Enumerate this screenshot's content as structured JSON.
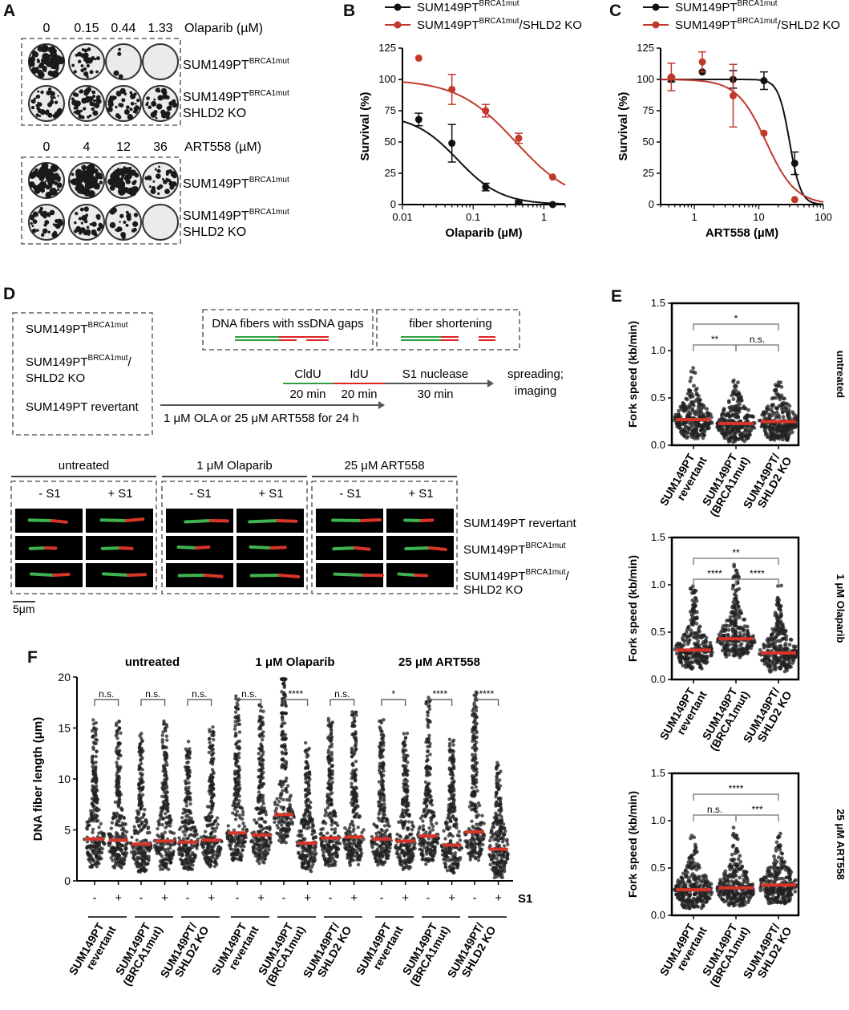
{
  "panels": {
    "A": {
      "label": "A",
      "olaparib": {
        "header": "Olaparib (µM)",
        "doses": [
          "0",
          "0.15",
          "0.44",
          "1.33"
        ]
      },
      "art558": {
        "header": "ART558 (µM)",
        "doses": [
          "0",
          "4",
          "12",
          "36"
        ]
      },
      "row1": {
        "base": "SUM149PT",
        "sup": "BRCA1mut"
      },
      "row2_line1": {
        "base": "SUM149PT",
        "sup": "BRCA1mut"
      },
      "row2_line2": "SHLD2 KO",
      "plate_densities": {
        "olaparib_row1": [
          0.85,
          0.35,
          0.05,
          0.0
        ],
        "olaparib_row2": [
          0.55,
          0.55,
          0.5,
          0.45
        ],
        "art558_row1": [
          0.9,
          0.85,
          0.8,
          0.5
        ],
        "art558_row2": [
          0.55,
          0.45,
          0.3,
          0.0
        ]
      }
    },
    "B": {
      "label": "B"
    },
    "C": {
      "label": "C"
    },
    "D": {
      "label": "D",
      "cell_lines": [
        {
          "base": "SUM149PT",
          "sup": "BRCA1mut",
          "suffix": ""
        },
        {
          "base": "SUM149PT",
          "sup": "BRCA1mut",
          "suffix": "/"
        },
        {
          "base": "SHLD2 KO",
          "sup": "",
          "suffix": ""
        },
        {
          "base": "SUM149PT revertant",
          "sup": "",
          "suffix": ""
        }
      ],
      "box1": "DNA fibers with ssDNA gaps",
      "box2": "fiber shortening",
      "steps": [
        {
          "name": "CldU",
          "time": "20 min"
        },
        {
          "name": "IdU",
          "time": "20 min"
        },
        {
          "name": "S1 nuclease",
          "time": "30 min"
        }
      ],
      "final_step": [
        "spreading;",
        "imaging"
      ],
      "treatment": "1 μM OLA or 25 μM ART558 for 24 h",
      "groups": [
        "untreated",
        "1 μM Olaparib",
        "25 μM ART558"
      ],
      "s1_labels": [
        "- S1",
        "+ S1"
      ],
      "row_labels": [
        {
          "base": "SUM149PT revertant",
          "sup": ""
        },
        {
          "base": "SUM149PT",
          "sup": "BRCA1mut"
        },
        {
          "base": "SUM149PT",
          "sup": "BRCA1mut",
          "suffix": "/",
          "line2": "SHLD2 KO"
        }
      ],
      "scale_bar": "5μm"
    },
    "E": {
      "label": "E",
      "conditions": [
        "untreated",
        "1 μM Olaparib",
        "25 μM ART558"
      ]
    },
    "F": {
      "label": "F",
      "s1": "S1",
      "minus": "-",
      "plus": "+"
    }
  },
  "chart_data": [
    {
      "id": "B",
      "type": "scatter",
      "xlabel": "Olaparib (µM)",
      "ylabel": "Survival (%)",
      "xscale": "log",
      "xlim": [
        0.01,
        2
      ],
      "ylim": [
        0,
        125
      ],
      "xticks": [
        "0.01",
        "0.1",
        "1"
      ],
      "yticks": [
        0,
        25,
        50,
        75,
        100,
        125
      ],
      "legend_position": "top",
      "series": [
        {
          "name": "SUM149PT",
          "name_sup": "BRCA1mut",
          "color": "#111111",
          "x": [
            0.017,
            0.05,
            0.15,
            0.44,
            1.33
          ],
          "y": [
            68,
            49,
            14,
            2,
            0
          ],
          "err": [
            5,
            15,
            3,
            1,
            0
          ],
          "fit": {
            "top": 72,
            "ic50": 0.06,
            "hill": 1.4
          }
        },
        {
          "name": "SUM149PT",
          "name_sup": "BRCA1mut",
          "name_suffix": "/SHLD2 KO",
          "color": "#c0392b",
          "x": [
            0.017,
            0.05,
            0.15,
            0.44,
            1.33
          ],
          "y": [
            117,
            92,
            75,
            53,
            22
          ],
          "err": [
            0,
            12,
            5,
            4,
            0
          ],
          "fit": {
            "top": 100,
            "ic50": 0.4,
            "hill": 1.05
          }
        }
      ]
    },
    {
      "id": "C",
      "type": "scatter",
      "xlabel": "ART558 (µM)",
      "ylabel": "Survival (%)",
      "xscale": "log",
      "xlim": [
        0.3,
        100
      ],
      "ylim": [
        0,
        125
      ],
      "xticks": [
        "1",
        "10",
        "100"
      ],
      "yticks": [
        0,
        25,
        50,
        75,
        100,
        125
      ],
      "legend_position": "top",
      "series": [
        {
          "name": "SUM149PT",
          "name_sup": "BRCA1mut",
          "color": "#111111",
          "x": [
            0.44,
            1.33,
            4,
            12,
            36
          ],
          "y": [
            100,
            106,
            100,
            99,
            33
          ],
          "err": [
            2,
            0,
            7,
            7,
            9
          ],
          "fit": {
            "top": 100,
            "ic50": 30,
            "hill": 5
          }
        },
        {
          "name": "SUM149PT",
          "name_sup": "BRCA1mut",
          "name_suffix": "/SHLD2 KO",
          "color": "#c0392b",
          "x": [
            0.44,
            1.33,
            4,
            12,
            36
          ],
          "y": [
            102,
            114,
            87,
            57,
            4
          ],
          "err": [
            11,
            8,
            25,
            0,
            0
          ],
          "fit": {
            "top": 100,
            "ic50": 13,
            "hill": 1.9
          }
        }
      ]
    },
    {
      "id": "E1",
      "type": "scatter",
      "ylabel": "Fork speed (kb/min)",
      "condition": "untreated",
      "ylim": [
        0,
        1.5
      ],
      "yticks": [
        "0.0",
        "0.5",
        "1.0",
        "1.5"
      ],
      "categories": [
        [
          "SUM149PT",
          "revertant"
        ],
        [
          "SUM149PT",
          "(BRCA1mut)"
        ],
        [
          "SUM149PT/",
          "SHLD2 KO"
        ]
      ],
      "medians": [
        0.27,
        0.23,
        0.25
      ],
      "spreads": [
        0.55,
        0.55,
        0.45
      ],
      "brackets": [
        {
          "from": 0,
          "to": 2,
          "text": "*",
          "level": 0.2
        },
        {
          "from": 0,
          "to": 1,
          "text": "**",
          "level": 1
        },
        {
          "from": 1,
          "to": 2,
          "text": "n.s.",
          "level": 1
        }
      ]
    },
    {
      "id": "E2",
      "type": "scatter",
      "ylabel": "Fork speed (kb/min)",
      "condition": "1 μM Olaparib",
      "ylim": [
        0,
        1.5
      ],
      "yticks": [
        "0.0",
        "0.5",
        "1.0",
        "1.5"
      ],
      "categories": [
        [
          "SUM149PT",
          "revertant"
        ],
        [
          "SUM149PT",
          "(BRCA1mut)"
        ],
        [
          "SUM149PT/",
          "SHLD2 KO"
        ]
      ],
      "medians": [
        0.31,
        0.43,
        0.28
      ],
      "spreads": [
        0.75,
        0.95,
        0.75
      ],
      "brackets": [
        {
          "from": 0,
          "to": 2,
          "text": "**",
          "level": 0.2
        },
        {
          "from": 0,
          "to": 1,
          "text": "****",
          "level": 1
        },
        {
          "from": 1,
          "to": 2,
          "text": "****",
          "level": 1
        }
      ]
    },
    {
      "id": "E3",
      "type": "scatter",
      "ylabel": "Fork speed (kb/min)",
      "condition": "25 μM ART558",
      "ylim": [
        0,
        1.5
      ],
      "yticks": [
        "0.0",
        "0.5",
        "1.0",
        "1.5"
      ],
      "categories": [
        [
          "SUM149PT",
          "revertant"
        ],
        [
          "SUM149PT",
          "(BRCA1mut)"
        ],
        [
          "SUM149PT/",
          "SHLD2 KO"
        ]
      ],
      "medians": [
        0.27,
        0.29,
        0.32
      ],
      "spreads": [
        0.6,
        0.7,
        0.55
      ],
      "brackets": [
        {
          "from": 0,
          "to": 2,
          "text": "****",
          "level": 0.2
        },
        {
          "from": 0,
          "to": 1,
          "text": "n.s.",
          "level": 1
        },
        {
          "from": 1,
          "to": 2,
          "text": "***",
          "level": 1
        }
      ]
    },
    {
      "id": "F",
      "type": "scatter",
      "ylabel": "DNA fiber length (μm)",
      "ylim": [
        0,
        20
      ],
      "yticks": [
        0,
        5,
        10,
        15,
        20
      ],
      "groups": [
        "untreated",
        "1 μM Olaparib",
        "25 μM ART558"
      ],
      "cell_lines": [
        [
          "SUM149PT",
          "revertant"
        ],
        [
          "SUM149PT",
          "(BRCA1mut)"
        ],
        [
          "SUM149PT/",
          "SHLD2 KO"
        ]
      ],
      "medians": [
        4.1,
        4.0,
        3.6,
        3.9,
        3.8,
        4.0,
        4.7,
        4.5,
        6.5,
        3.7,
        4.2,
        4.3,
        4.1,
        3.9,
        4.4,
        3.5,
        4.8,
        3.1
      ],
      "spreads": [
        12,
        12,
        11,
        12,
        10,
        12,
        14,
        13,
        18,
        10,
        12,
        13,
        12,
        11,
        14,
        11,
        14,
        9
      ],
      "significance": [
        "n.s.",
        "n.s.",
        "n.s.",
        "n.s.",
        "****",
        "n.s.",
        "*",
        "****",
        "****"
      ]
    }
  ]
}
